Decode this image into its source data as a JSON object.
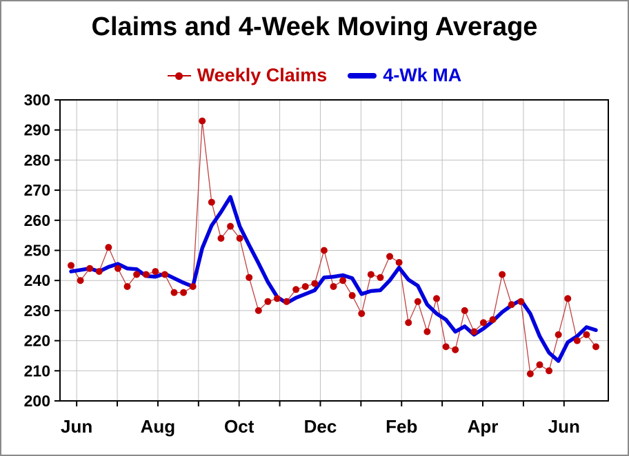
{
  "title": "Claims and 4-Week Moving Average",
  "legend": {
    "weekly_label": "Weekly Claims",
    "ma_label": "4-Wk MA"
  },
  "colors": {
    "weekly_marker": "#C00000",
    "weekly_line": "#C24040",
    "ma_line": "#0000DD",
    "grid": "#BFBFBF",
    "axis": "#000000"
  },
  "chart_data": {
    "type": "line",
    "title": "Claims and 4-Week Moving Average",
    "xlabel": "",
    "ylabel": "",
    "ylim": [
      200,
      300
    ],
    "y_ticks": [
      200,
      210,
      220,
      230,
      240,
      250,
      260,
      270,
      280,
      290,
      300
    ],
    "x_tick_labels": [
      "Jun",
      "Aug",
      "Oct",
      "Dec",
      "Feb",
      "Apr",
      "Jun"
    ],
    "months_spanned": 13,
    "grid": true,
    "legend_position": "top",
    "series": [
      {
        "name": "Weekly Claims",
        "style": "thin-line-with-markers",
        "color": "#C00000",
        "values": [
          245,
          240,
          244,
          243,
          251,
          244,
          238,
          242,
          242,
          243,
          242,
          236,
          236,
          238,
          293,
          266,
          254,
          258,
          254,
          241,
          230,
          233,
          234,
          233,
          237,
          238,
          239,
          250,
          238,
          240,
          235,
          229,
          242,
          241,
          248,
          246,
          226,
          233,
          223,
          234,
          218,
          217,
          230,
          223,
          226,
          227,
          242,
          232,
          233,
          209,
          212,
          210,
          222,
          234,
          220,
          222,
          218
        ]
      },
      {
        "name": "4-Wk MA",
        "style": "thick-line",
        "color": "#0000DD",
        "values": [
          243,
          243.5,
          244,
          243,
          244.5,
          245.5,
          244,
          243.75,
          241.5,
          241.25,
          242.25,
          240.75,
          239.25,
          238,
          250.75,
          258.25,
          262.75,
          267.75,
          258,
          251.75,
          245.75,
          239.5,
          234.5,
          232.5,
          234.25,
          235.5,
          236.75,
          241,
          241.25,
          241.75,
          240.75,
          235.5,
          236.5,
          236.75,
          240,
          244.25,
          240.25,
          238.25,
          232,
          229,
          227,
          223,
          224.75,
          222,
          224,
          226.5,
          229.5,
          231.75,
          233.5,
          229,
          221.5,
          216,
          213.25,
          219.5,
          221.5,
          224.5,
          223.5
        ]
      }
    ]
  }
}
